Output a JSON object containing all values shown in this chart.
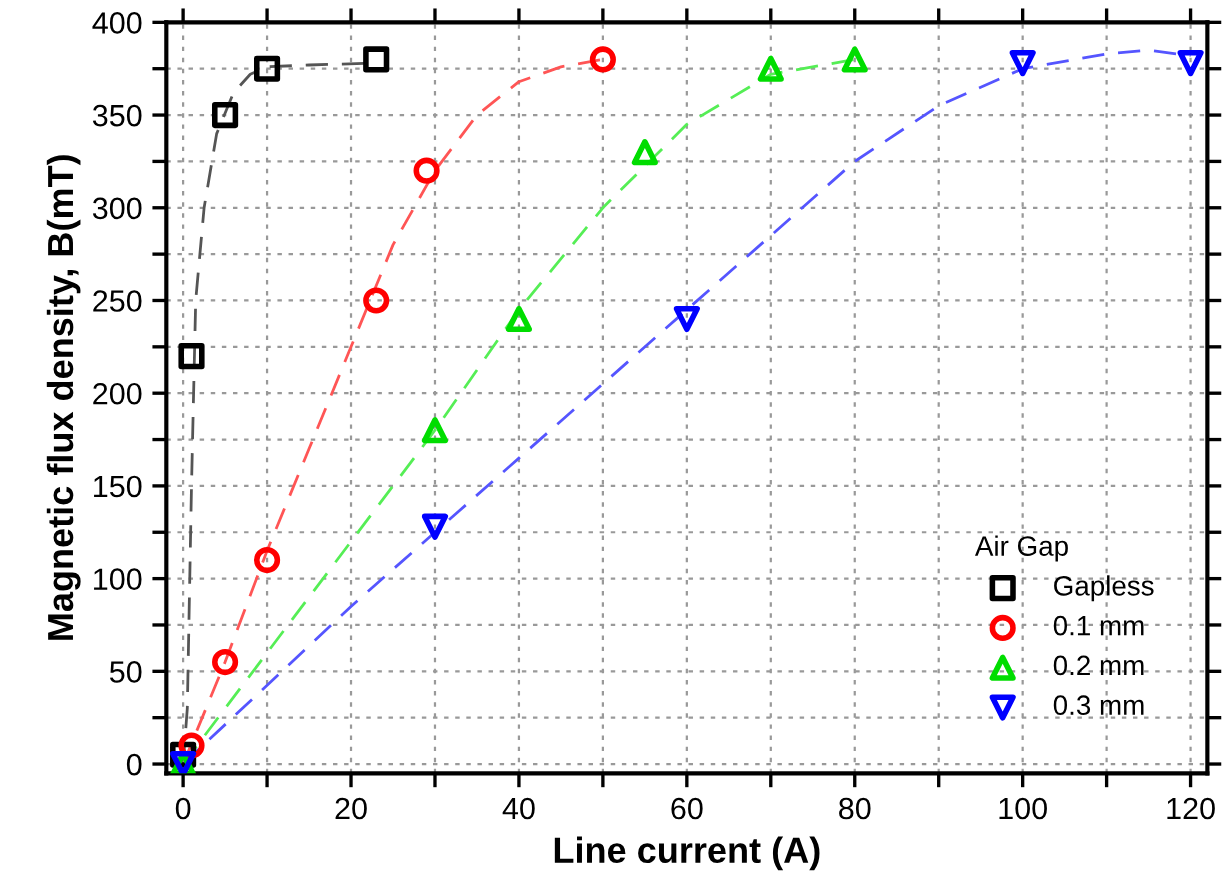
{
  "chart_data": {
    "type": "scatter",
    "xlabel": "Line current (A)",
    "ylabel": "Magnetic flux density, B(mT)",
    "legend_title": "Air Gap",
    "legend": "bottom right",
    "grid": true,
    "xlim": [
      -2,
      122
    ],
    "ylim": [
      -5,
      400
    ],
    "xticks": [
      0,
      {
        "value": 10,
        "label": null
      },
      20,
      {
        "value": 30,
        "label": null
      },
      40,
      {
        "value": 50,
        "label": null
      },
      60,
      {
        "value": 70,
        "label": null
      },
      80,
      {
        "value": 90,
        "label": null
      },
      100,
      {
        "value": 110,
        "label": null
      },
      120
    ],
    "yticks": [
      0,
      {
        "value": 25,
        "label": null
      },
      50,
      {
        "value": 75,
        "label": null
      },
      100,
      {
        "value": 125,
        "label": null
      },
      150,
      {
        "value": 175,
        "label": null
      },
      200,
      {
        "value": 225,
        "label": null
      },
      250,
      {
        "value": 275,
        "label": null
      },
      300,
      {
        "value": 325,
        "label": null
      },
      350,
      {
        "value": 375,
        "label": null
      },
      400
    ],
    "series": [
      {
        "type": "line",
        "line_style": "dashed",
        "marker": "none",
        "color": "#555555",
        "x": [
          0,
          0.5,
          1,
          1.5,
          2.5,
          4,
          6,
          8,
          10,
          15,
          23
        ],
        "values": [
          0,
          30,
          150,
          250,
          300,
          340,
          362,
          372,
          376,
          377,
          378
        ]
      },
      {
        "type": "line",
        "line_style": "dashed",
        "marker": "none",
        "color": "#ff5555",
        "x": [
          0,
          5,
          10,
          15,
          20,
          25,
          30,
          35,
          40,
          45,
          50
        ],
        "values": [
          0,
          55,
          115,
          170,
          225,
          280,
          320,
          350,
          368,
          376,
          380
        ]
      },
      {
        "type": "line",
        "line_style": "dashed",
        "marker": "none",
        "color": "#55ee55",
        "x": [
          0,
          10,
          20,
          30,
          40,
          50,
          60,
          70,
          80
        ],
        "values": [
          0,
          60,
          120,
          180,
          245,
          300,
          345,
          372,
          380
        ]
      },
      {
        "type": "line",
        "line_style": "dashed",
        "marker": "none",
        "color": "#5555ff",
        "x": [
          0,
          20,
          30,
          40,
          50,
          60,
          70,
          80,
          90,
          100,
          110,
          115,
          120
        ],
        "values": [
          0,
          85,
          125,
          165,
          205,
          245,
          285,
          325,
          355,
          375,
          383,
          385,
          382
        ]
      },
      {
        "name": "Gapless",
        "marker": "square",
        "color": "#000000",
        "x": [
          0,
          1,
          5,
          10,
          23
        ],
        "values": [
          5,
          220,
          350,
          375,
          380
        ]
      },
      {
        "name": "0.1 mm",
        "marker": "circle",
        "color": "#ff0000",
        "x": [
          1,
          5,
          10,
          23,
          29,
          50
        ],
        "values": [
          10,
          55,
          110,
          250,
          320,
          380
        ]
      },
      {
        "name": "0.2 mm",
        "marker": "triangle",
        "color": "#00dd00",
        "x": [
          0,
          30,
          40,
          55,
          70,
          80
        ],
        "values": [
          0,
          180,
          240,
          330,
          375,
          380
        ]
      },
      {
        "name": "0.3 mm",
        "marker": "triangle_down",
        "color": "#0000ff",
        "x": [
          0,
          30,
          60,
          100,
          120
        ],
        "values": [
          0,
          128,
          240,
          378,
          378
        ]
      }
    ]
  }
}
